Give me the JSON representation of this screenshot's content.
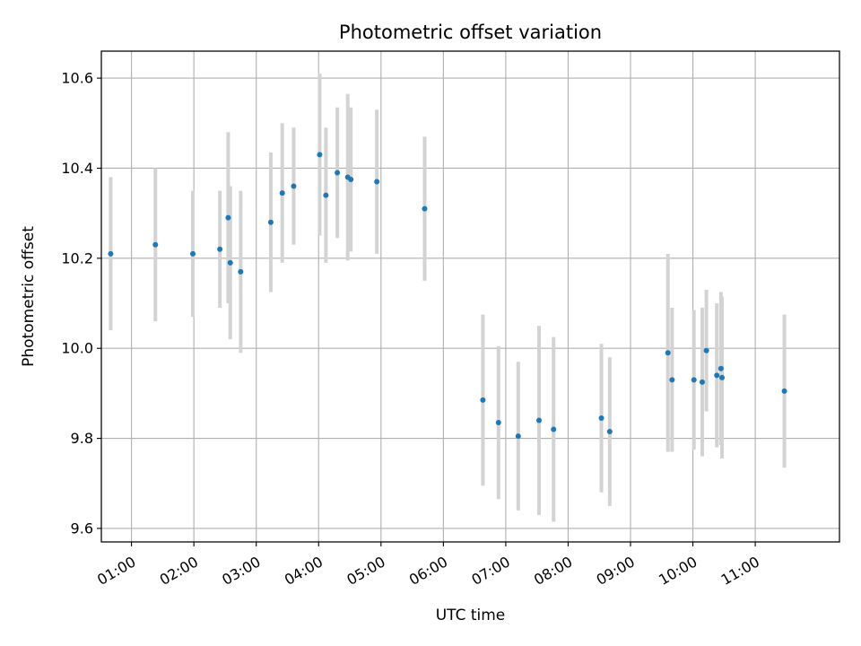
{
  "chart_data": {
    "type": "scatter",
    "title": "Photometric offset variation",
    "xlabel": "UTC time",
    "ylabel": "Photometric offset",
    "xlim": [
      "00:31",
      "12:21"
    ],
    "ylim": [
      9.57,
      10.66
    ],
    "x_ticks": [
      "01:00",
      "02:00",
      "03:00",
      "04:00",
      "05:00",
      "06:00",
      "07:00",
      "08:00",
      "09:00",
      "10:00",
      "11:00"
    ],
    "y_ticks": [
      9.6,
      9.8,
      10.0,
      10.2,
      10.4,
      10.6
    ],
    "y_tick_labels": [
      "9.6",
      "9.8",
      "10.0",
      "10.2",
      "10.4",
      "10.6"
    ],
    "grid": true,
    "point_color": "#1f77b4",
    "errorbar_color": "#d3d3d3",
    "points": [
      {
        "x": "00:40",
        "y": 10.21,
        "err": 0.17
      },
      {
        "x": "01:23",
        "y": 10.23,
        "err": 0.17
      },
      {
        "x": "01:59",
        "y": 10.21,
        "err": 0.14
      },
      {
        "x": "02:25",
        "y": 10.22,
        "err": 0.13
      },
      {
        "x": "02:33",
        "y": 10.29,
        "err": 0.19
      },
      {
        "x": "02:35",
        "y": 10.19,
        "err": 0.17
      },
      {
        "x": "02:45",
        "y": 10.17,
        "err": 0.18
      },
      {
        "x": "03:14",
        "y": 10.28,
        "err": 0.155
      },
      {
        "x": "03:25",
        "y": 10.345,
        "err": 0.155
      },
      {
        "x": "03:36",
        "y": 10.36,
        "err": 0.13
      },
      {
        "x": "04:01",
        "y": 10.43,
        "err": 0.18
      },
      {
        "x": "04:07",
        "y": 10.34,
        "err": 0.15
      },
      {
        "x": "04:18",
        "y": 10.39,
        "err": 0.145
      },
      {
        "x": "04:28",
        "y": 10.38,
        "err": 0.185
      },
      {
        "x": "04:31",
        "y": 10.375,
        "err": 0.16
      },
      {
        "x": "04:56",
        "y": 10.37,
        "err": 0.16
      },
      {
        "x": "05:42",
        "y": 10.31,
        "err": 0.16
      },
      {
        "x": "06:38",
        "y": 9.885,
        "err": 0.19
      },
      {
        "x": "06:53",
        "y": 9.835,
        "err": 0.17
      },
      {
        "x": "07:12",
        "y": 9.805,
        "err": 0.165
      },
      {
        "x": "07:32",
        "y": 9.84,
        "err": 0.21
      },
      {
        "x": "07:46",
        "y": 9.82,
        "err": 0.205
      },
      {
        "x": "08:32",
        "y": 9.845,
        "err": 0.165
      },
      {
        "x": "08:40",
        "y": 9.815,
        "err": 0.165
      },
      {
        "x": "09:36",
        "y": 9.99,
        "err": 0.22
      },
      {
        "x": "09:40",
        "y": 9.93,
        "err": 0.16
      },
      {
        "x": "10:01",
        "y": 9.93,
        "err": 0.155
      },
      {
        "x": "10:09",
        "y": 9.925,
        "err": 0.165
      },
      {
        "x": "10:13",
        "y": 9.995,
        "err": 0.135
      },
      {
        "x": "10:23",
        "y": 9.94,
        "err": 0.16
      },
      {
        "x": "10:27",
        "y": 9.955,
        "err": 0.17
      },
      {
        "x": "10:28",
        "y": 9.935,
        "err": 0.18
      },
      {
        "x": "11:28",
        "y": 9.905,
        "err": 0.17
      }
    ]
  }
}
